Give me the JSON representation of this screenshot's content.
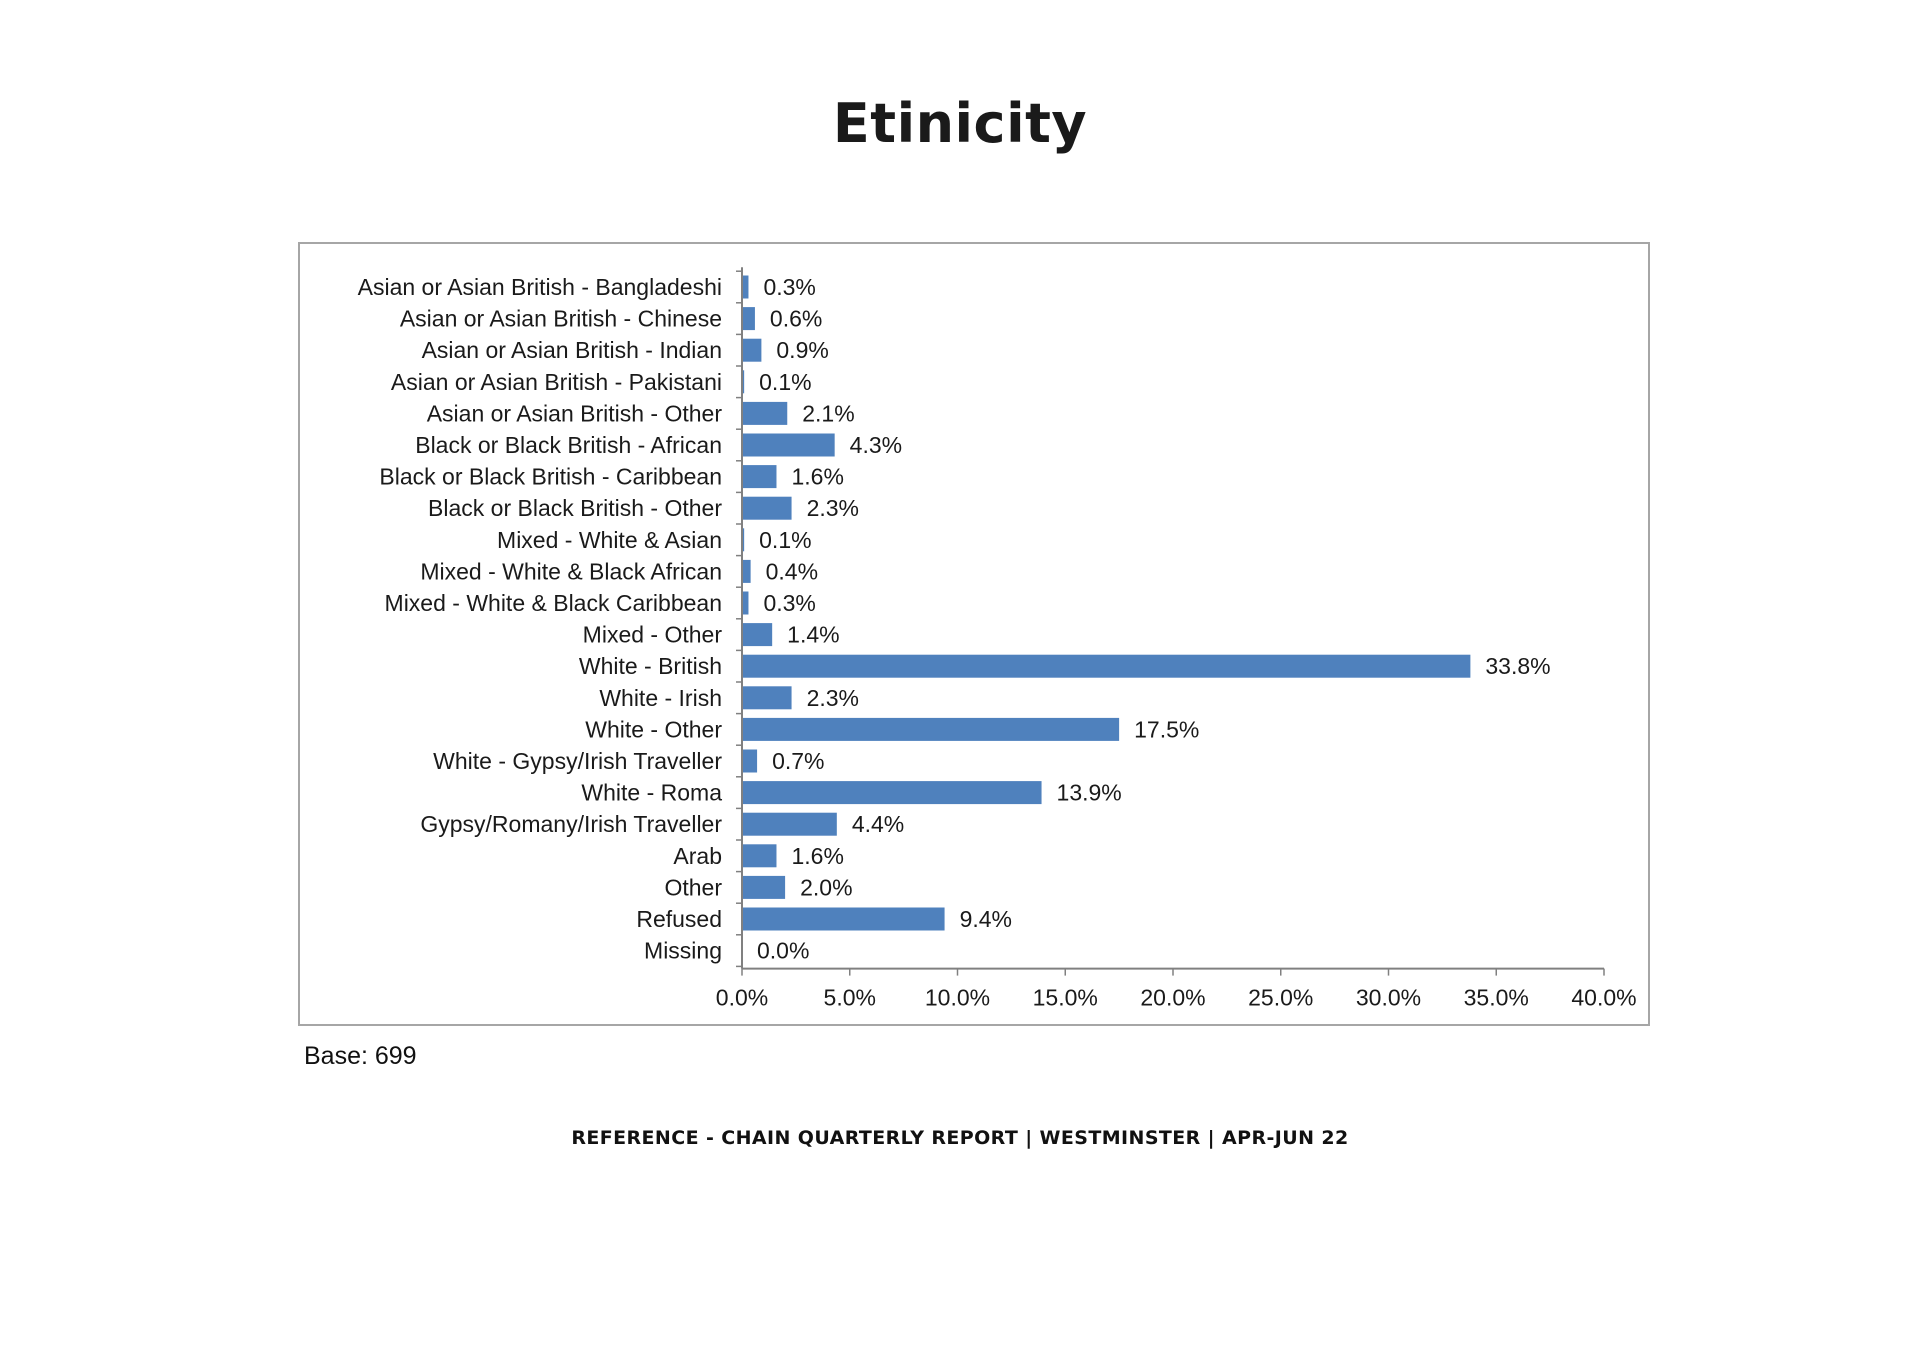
{
  "title": "Etinicity",
  "base_note": "Base: 699",
  "footer": "REFERENCE - CHAIN QUARTERLY REPORT | WESTMINSTER | APR-JUN 22",
  "colors": {
    "bar": "#4f81bd",
    "axis": "#808080",
    "text": "#1a1a1a"
  },
  "chart_data": {
    "type": "bar",
    "orientation": "horizontal",
    "categories": [
      "Asian or Asian British - Bangladeshi",
      "Asian or Asian British - Chinese",
      "Asian or Asian British - Indian",
      "Asian or Asian British - Pakistani",
      "Asian or Asian British - Other",
      "Black or Black British - African",
      "Black or Black British - Caribbean",
      "Black or Black British - Other",
      "Mixed - White & Asian",
      "Mixed - White & Black African",
      "Mixed - White & Black Caribbean",
      "Mixed - Other",
      "White - British",
      "White - Irish",
      "White - Other",
      "White - Gypsy/Irish Traveller",
      "White - Roma",
      "Gypsy/Romany/Irish Traveller",
      "Arab",
      "Other",
      "Refused",
      "Missing"
    ],
    "values": [
      0.3,
      0.6,
      0.9,
      0.1,
      2.1,
      4.3,
      1.6,
      2.3,
      0.1,
      0.4,
      0.3,
      1.4,
      33.8,
      2.3,
      17.5,
      0.7,
      13.9,
      4.4,
      1.6,
      2.0,
      9.4,
      0.0
    ],
    "data_labels": [
      "0.3%",
      "0.6%",
      "0.9%",
      "0.1%",
      "2.1%",
      "4.3%",
      "1.6%",
      "2.3%",
      "0.1%",
      "0.4%",
      "0.3%",
      "1.4%",
      "33.8%",
      "2.3%",
      "17.5%",
      "0.7%",
      "13.9%",
      "4.4%",
      "1.6%",
      "2.0%",
      "9.4%",
      "0.0%"
    ],
    "xlim": [
      0,
      40
    ],
    "xticks": [
      0,
      5,
      10,
      15,
      20,
      25,
      30,
      35,
      40
    ],
    "xtick_labels": [
      "0.0%",
      "5.0%",
      "10.0%",
      "15.0%",
      "20.0%",
      "25.0%",
      "30.0%",
      "35.0%",
      "40.0%"
    ],
    "grid": false,
    "legend": "none"
  }
}
